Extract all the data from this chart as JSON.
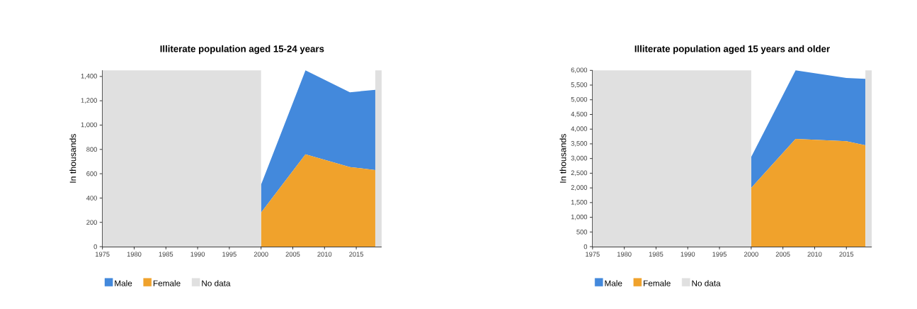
{
  "chart_data": [
    {
      "type": "area",
      "title": "Illiterate population aged 15-24 years",
      "ylabel": "In thousands",
      "stacked": true,
      "legend": "bottom",
      "grid": false,
      "x": [
        2000,
        2007,
        2014,
        2018
      ],
      "series": [
        {
          "name": "Female",
          "color": "#f0a22c",
          "values": [
            280,
            760,
            655,
            630
          ]
        },
        {
          "name": "Male",
          "color": "#4389dc",
          "values": [
            230,
            690,
            615,
            660
          ]
        }
      ],
      "bands": [
        {
          "axis": "x",
          "from": 1975,
          "to": 2000,
          "label": "No data",
          "color": "#e0e0e0"
        },
        {
          "axis": "x",
          "from": 2018,
          "to": 2019,
          "color": "#e0e0e0"
        }
      ],
      "xlim": [
        1975,
        2019
      ],
      "ylim": [
        0,
        1450
      ],
      "xticks": [
        1975,
        1980,
        1985,
        1990,
        1995,
        2000,
        2005,
        2010,
        2015
      ],
      "yticks": [
        0,
        200,
        400,
        600,
        800,
        {
          "value": 1000,
          "label": "1,000"
        },
        {
          "value": 1200,
          "label": "1,200"
        },
        {
          "value": 1400,
          "label": "1,400"
        }
      ]
    },
    {
      "type": "area",
      "title": "Illiterate population aged 15 years and older",
      "ylabel": "In thousands",
      "stacked": true,
      "legend": "bottom",
      "grid": false,
      "x": [
        2000,
        2007,
        2015,
        2018
      ],
      "series": [
        {
          "name": "Female",
          "color": "#f0a22c",
          "values": [
            2000,
            3670,
            3590,
            3450
          ]
        },
        {
          "name": "Male",
          "color": "#4389dc",
          "values": [
            1050,
            2330,
            2150,
            2260
          ]
        }
      ],
      "bands": [
        {
          "axis": "x",
          "from": 1975,
          "to": 2000,
          "label": "No data",
          "color": "#e0e0e0"
        },
        {
          "axis": "x",
          "from": 2018,
          "to": 2019,
          "color": "#e0e0e0"
        }
      ],
      "xlim": [
        1975,
        2019
      ],
      "ylim": [
        0,
        6000
      ],
      "xticks": [
        1975,
        1980,
        1985,
        1990,
        1995,
        2000,
        2005,
        2010,
        2015
      ],
      "yticks": [
        0,
        500,
        {
          "value": 1000,
          "label": "1,000"
        },
        {
          "value": 1500,
          "label": "1,500"
        },
        {
          "value": 2000,
          "label": "2,000"
        },
        {
          "value": 2500,
          "label": "2,500"
        },
        {
          "value": 3000,
          "label": "3,000"
        },
        {
          "value": 3500,
          "label": "3,500"
        },
        {
          "value": 4000,
          "label": "4,000"
        },
        {
          "value": 4500,
          "label": "4,500"
        },
        {
          "value": 5000,
          "label": "5,000"
        },
        {
          "value": 5500,
          "label": "5,500"
        },
        {
          "value": 6000,
          "label": "6,000"
        }
      ]
    }
  ]
}
